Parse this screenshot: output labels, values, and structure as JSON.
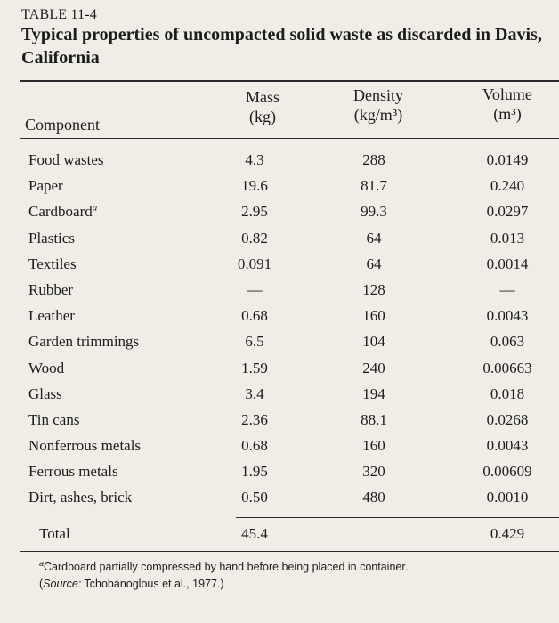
{
  "table": {
    "label": "TABLE 11-4",
    "title": "Typical properties of uncompacted solid waste as discarded in Davis, California",
    "headers": {
      "component": "Component",
      "mass": "Mass",
      "mass_unit": "(kg)",
      "density": "Density",
      "density_unit": "(kg/m³)",
      "volume": "Volume",
      "volume_unit": "(m³)"
    },
    "rows": [
      {
        "component": "Food wastes",
        "mass": "4.3",
        "density": "288",
        "volume": "0.0149"
      },
      {
        "component": "Paper",
        "mass": "19.6",
        "density": "81.7",
        "volume": "0.240"
      },
      {
        "component": "Cardboard",
        "note": "a",
        "mass": "2.95",
        "density": "99.3",
        "volume": "0.0297"
      },
      {
        "component": "Plastics",
        "mass": "0.82",
        "density": "64",
        "volume": "0.013"
      },
      {
        "component": "Textiles",
        "mass": "0.091",
        "density": "64",
        "volume": "0.0014"
      },
      {
        "component": "Rubber",
        "mass": "—",
        "density": "128",
        "volume": "—"
      },
      {
        "component": "Leather",
        "mass": "0.68",
        "density": "160",
        "volume": "0.0043"
      },
      {
        "component": "Garden trimmings",
        "mass": "6.5",
        "density": "104",
        "volume": "0.063"
      },
      {
        "component": "Wood",
        "mass": "1.59",
        "density": "240",
        "volume": "0.00663"
      },
      {
        "component": "Glass",
        "mass": "3.4",
        "density": "194",
        "volume": "0.018"
      },
      {
        "component": "Tin cans",
        "mass": "2.36",
        "density": "88.1",
        "volume": "0.0268"
      },
      {
        "component": "Nonferrous metals",
        "mass": "0.68",
        "density": "160",
        "volume": "0.0043"
      },
      {
        "component": "Ferrous metals",
        "mass": "1.95",
        "density": "320",
        "volume": "0.00609"
      },
      {
        "component": "Dirt, ashes, brick",
        "mass": "0.50",
        "density": "480",
        "volume": "0.0010"
      }
    ],
    "total": {
      "label": "Total",
      "mass": "45.4",
      "volume": "0.429"
    },
    "footnote": {
      "marker": "a",
      "text": "Cardboard partially compressed by hand before being placed in container.",
      "source_label": "Source:",
      "source_text": "Tchobanoglous et al., 1977.)",
      "source_open": "("
    }
  }
}
